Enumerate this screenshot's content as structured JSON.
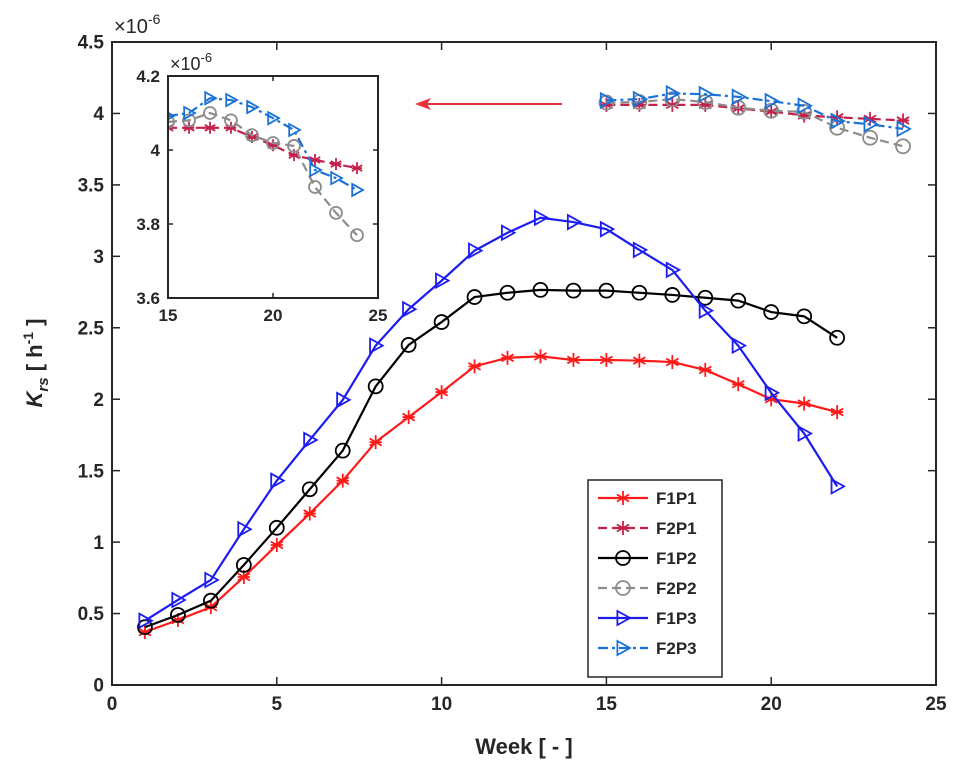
{
  "chart_data": {
    "type": "line",
    "xlabel": "Week [ - ]",
    "ylabel": {
      "symbol": "K",
      "subscript": "rs",
      "unit": " [ h",
      "unit_power": "-1",
      "unit_end": " ]"
    },
    "y_exponent": {
      "base": "×10",
      "power": "-6"
    },
    "xlim": [
      0,
      25
    ],
    "xticks": [
      0,
      5,
      10,
      15,
      20,
      25
    ],
    "ylim": [
      0,
      4.5
    ],
    "yticks": [
      0,
      0.5,
      1,
      1.5,
      2,
      2.5,
      3,
      3.5,
      4,
      4.5
    ],
    "legend": "lower right",
    "series": [
      {
        "name": "F1P1",
        "color": "#ff1a1a",
        "line_style": "solid",
        "marker": "star",
        "x": [
          1,
          2,
          3,
          4,
          5,
          6,
          7,
          8,
          9,
          10,
          11,
          12,
          13,
          14,
          15,
          16,
          17,
          18,
          19,
          20,
          21,
          22
        ],
        "values": [
          0.37,
          0.455,
          0.545,
          0.756,
          0.98,
          1.2,
          1.43,
          1.7,
          1.875,
          2.05,
          2.23,
          2.29,
          2.3,
          2.275,
          2.275,
          2.27,
          2.26,
          2.205,
          2.105,
          2.0,
          1.97,
          1.91
        ]
      },
      {
        "name": "F2P1",
        "color": "#c4204c",
        "line_style": "dashed",
        "marker": "star",
        "x": [
          15,
          16,
          17,
          18,
          19,
          20,
          21,
          22,
          23,
          24
        ],
        "values": [
          4.06,
          4.06,
          4.06,
          4.06,
          4.035,
          4.013,
          3.986,
          3.973,
          3.962,
          3.951
        ]
      },
      {
        "name": "F1P2",
        "color": "#000000",
        "line_style": "solid",
        "marker": "circle",
        "x": [
          1,
          2,
          3,
          4,
          5,
          6,
          7,
          8,
          9,
          10,
          11,
          12,
          13,
          14,
          15,
          16,
          17,
          18,
          19,
          20,
          21,
          22
        ],
        "values": [
          0.405,
          0.49,
          0.59,
          0.84,
          1.1,
          1.37,
          1.64,
          2.09,
          2.38,
          2.54,
          2.715,
          2.745,
          2.765,
          2.76,
          2.76,
          2.745,
          2.73,
          2.71,
          2.69,
          2.61,
          2.58,
          2.43
        ]
      },
      {
        "name": "F2P2",
        "color": "#8c8c8c",
        "line_style": "dashed",
        "marker": "circle",
        "x": [
          15,
          16,
          17,
          18,
          19,
          20,
          21,
          22,
          23,
          24
        ],
        "values": [
          4.076,
          4.08,
          4.1,
          4.08,
          4.04,
          4.019,
          4.011,
          3.9,
          3.83,
          3.77
        ]
      },
      {
        "name": "F1P3",
        "color": "#1c1cf0",
        "line_style": "solid",
        "marker": "triangle",
        "x": [
          1,
          2,
          3,
          4,
          5,
          6,
          7,
          8,
          9,
          10,
          11,
          12,
          13,
          14,
          15,
          16,
          17,
          18,
          19,
          20,
          21,
          22
        ],
        "values": [
          0.45,
          0.595,
          0.735,
          1.09,
          1.43,
          1.715,
          1.995,
          2.375,
          2.63,
          2.83,
          3.04,
          3.165,
          3.27,
          3.24,
          3.19,
          3.045,
          2.905,
          2.62,
          2.375,
          2.045,
          1.76,
          1.39
        ]
      },
      {
        "name": "F2P3",
        "color": "#1a72d6",
        "line_style": "dashdot",
        "marker": "triangle",
        "x": [
          15,
          16,
          17,
          18,
          19,
          20,
          21,
          22,
          23,
          24
        ],
        "values": [
          4.092,
          4.1,
          4.14,
          4.135,
          4.116,
          4.086,
          4.054,
          3.946,
          3.924,
          3.892
        ]
      }
    ],
    "inset": {
      "series_shown": [
        1,
        3,
        5
      ],
      "xlim": [
        15,
        25
      ],
      "xticks": [
        15,
        20,
        25
      ],
      "ylim": [
        3.6,
        4.2
      ],
      "yticks": [
        3.6,
        3.8,
        4,
        4.2
      ],
      "y_exponent": {
        "base": "×10",
        "power": "-6"
      }
    }
  }
}
